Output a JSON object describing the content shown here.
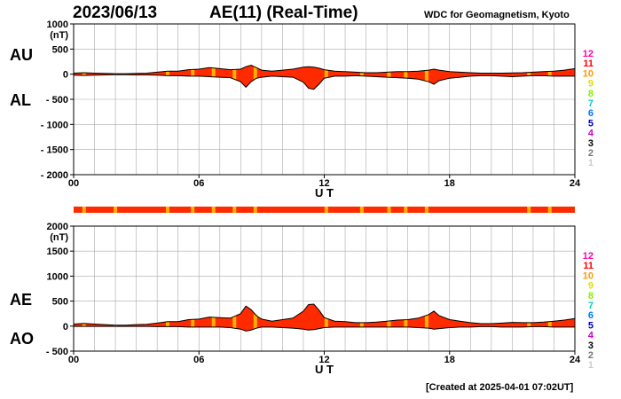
{
  "header": {
    "date": "2023/06/13",
    "index_title": "AE(11) (Real-Time)",
    "source": "WDC for Geomagnetism, Kyoto"
  },
  "footer": {
    "created": "[Created at 2025-04-01 07:02UT]"
  },
  "station_count_legend": [
    {
      "label": "12",
      "color": "#ff00aa"
    },
    {
      "label": "11",
      "color": "#ff0000"
    },
    {
      "label": "10",
      "color": "#ff9900"
    },
    {
      "label": "9",
      "color": "#dddd00"
    },
    {
      "label": "8",
      "color": "#88ee00"
    },
    {
      "label": "7",
      "color": "#00cccc"
    },
    {
      "label": "6",
      "color": "#0077ff"
    },
    {
      "label": "5",
      "color": "#0000cc"
    },
    {
      "label": "4",
      "color": "#cc00cc"
    },
    {
      "label": "3",
      "color": "#000000"
    },
    {
      "label": "2",
      "color": "#777777"
    },
    {
      "label": "1",
      "color": "#cccccc"
    }
  ],
  "colors": {
    "fill": "#ff2a00",
    "outline": "#000000",
    "highlight": "#ffb000",
    "grid": "#aaaaaa"
  },
  "chart_data": [
    {
      "type": "area",
      "name": "AU/AL",
      "series": [
        {
          "name": "AU"
        },
        {
          "name": "AL"
        }
      ],
      "unit": "(nT)",
      "xlabel": "U T",
      "x_ticks": [
        "00",
        "06",
        "12",
        "18",
        "24"
      ],
      "xlim": [
        0,
        24
      ],
      "ylim": [
        -2000,
        1000
      ],
      "y_ticks": [
        "1000",
        "500",
        "0",
        "- 500",
        "- 1000",
        "- 1500",
        "- 2000"
      ],
      "y_tick_values": [
        1000,
        500,
        0,
        -500,
        -1000,
        -1500,
        -2000
      ],
      "x": [
        0,
        0.5,
        1,
        1.5,
        2,
        2.5,
        3,
        3.5,
        4,
        4.5,
        5,
        5.5,
        6,
        6.5,
        7,
        7.5,
        8,
        8.25,
        8.5,
        8.75,
        9,
        9.5,
        10,
        10.5,
        11,
        11.25,
        11.5,
        11.75,
        12,
        12.5,
        13,
        13.5,
        14,
        14.5,
        15,
        15.5,
        16,
        16.5,
        17,
        17.25,
        17.5,
        18,
        18.5,
        19,
        19.5,
        20,
        20.5,
        21,
        21.5,
        22,
        22.5,
        23,
        23.5,
        24
      ],
      "upper": [
        20,
        30,
        20,
        15,
        10,
        10,
        15,
        20,
        40,
        60,
        60,
        90,
        100,
        130,
        110,
        90,
        100,
        150,
        180,
        130,
        80,
        60,
        80,
        100,
        140,
        150,
        140,
        120,
        90,
        60,
        50,
        40,
        30,
        30,
        40,
        50,
        50,
        60,
        80,
        100,
        80,
        50,
        40,
        30,
        20,
        20,
        20,
        25,
        30,
        40,
        50,
        60,
        80,
        110
      ],
      "lower": [
        -20,
        -25,
        -20,
        -15,
        -10,
        -10,
        -15,
        -15,
        -20,
        -30,
        -30,
        -40,
        -40,
        -50,
        -60,
        -70,
        -150,
        -260,
        -150,
        -80,
        -60,
        -40,
        -50,
        -60,
        -160,
        -280,
        -300,
        -200,
        -80,
        -40,
        -40,
        -30,
        -40,
        -50,
        -60,
        -70,
        -80,
        -100,
        -150,
        -200,
        -130,
        -80,
        -60,
        -40,
        -30,
        -30,
        -40,
        -50,
        -40,
        -30,
        -30,
        -40,
        -40,
        -40
      ],
      "station_bar": true
    },
    {
      "type": "area",
      "name": "AE/AO",
      "series": [
        {
          "name": "AE"
        },
        {
          "name": "AO"
        }
      ],
      "unit": "(nT)",
      "xlabel": "U T",
      "x_ticks": [
        "00",
        "06",
        "12",
        "18",
        "24"
      ],
      "xlim": [
        0,
        24
      ],
      "ylim": [
        -500,
        2000
      ],
      "y_ticks": [
        "2000",
        "1500",
        "1000",
        "500",
        "0",
        "- 500"
      ],
      "y_tick_values": [
        2000,
        1500,
        1000,
        500,
        0,
        -500
      ],
      "x": [
        0,
        0.5,
        1,
        1.5,
        2,
        2.5,
        3,
        3.5,
        4,
        4.5,
        5,
        5.5,
        6,
        6.5,
        7,
        7.5,
        8,
        8.25,
        8.5,
        8.75,
        9,
        9.5,
        10,
        10.5,
        11,
        11.25,
        11.5,
        11.75,
        12,
        12.5,
        13,
        13.5,
        14,
        14.5,
        15,
        15.5,
        16,
        16.5,
        17,
        17.25,
        17.5,
        18,
        18.5,
        19,
        19.5,
        20,
        20.5,
        21,
        21.5,
        22,
        22.5,
        23,
        23.5,
        24
      ],
      "upper": [
        40,
        55,
        40,
        30,
        20,
        20,
        30,
        35,
        60,
        90,
        90,
        130,
        140,
        180,
        170,
        160,
        250,
        400,
        330,
        210,
        140,
        100,
        130,
        160,
        300,
        430,
        440,
        320,
        170,
        100,
        90,
        70,
        70,
        80,
        100,
        120,
        130,
        160,
        230,
        300,
        210,
        130,
        100,
        70,
        50,
        50,
        60,
        75,
        70,
        70,
        80,
        100,
        120,
        150
      ],
      "lower": [
        -5,
        -5,
        -5,
        -5,
        -5,
        -5,
        -5,
        -5,
        -10,
        -10,
        -10,
        -20,
        -20,
        -20,
        -20,
        -30,
        -60,
        -100,
        -80,
        -40,
        -20,
        -20,
        -30,
        -40,
        -60,
        -80,
        -70,
        -50,
        -30,
        -20,
        -20,
        -20,
        -20,
        -20,
        -20,
        -20,
        -20,
        -30,
        -40,
        -60,
        -50,
        -30,
        -20,
        -20,
        -10,
        -10,
        -20,
        -20,
        -20,
        -10,
        -10,
        -20,
        -20,
        -20
      ],
      "station_bar": false
    }
  ]
}
